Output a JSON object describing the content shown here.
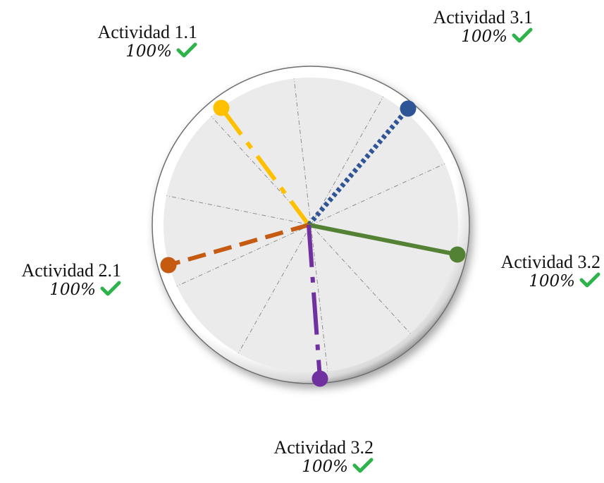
{
  "activities": [
    {
      "id": "act-1-1",
      "name": "Actividad 1.1",
      "percent": "100%",
      "color": "#FFC000",
      "dash": "dash-dot",
      "status_icon": "check-icon"
    },
    {
      "id": "act-3-1a",
      "name": "Actividad 3.1",
      "percent": "100%",
      "color": "#2F5597",
      "dash": "dotted",
      "status_icon": "check-icon"
    },
    {
      "id": "act-3-2a",
      "name": "Actividad 3.2",
      "percent": "100%",
      "color": "#548235",
      "dash": "solid",
      "status_icon": "check-icon"
    },
    {
      "id": "act-2-1",
      "name": "Actividad 2.1",
      "percent": "100%",
      "color": "#C55A11",
      "dash": "dashed",
      "status_icon": "check-icon"
    },
    {
      "id": "act-3-2b",
      "name": "Actividad 3.2",
      "percent": "100%",
      "color": "#7030A0",
      "dash": "long-dash-dot",
      "status_icon": "check-icon"
    }
  ],
  "check_color": "#2DB34A",
  "dial": {
    "fill": "#EBEBEB",
    "rim": "#FFFFFF",
    "grid_color": "#8C8C8C",
    "sectors": 10
  }
}
